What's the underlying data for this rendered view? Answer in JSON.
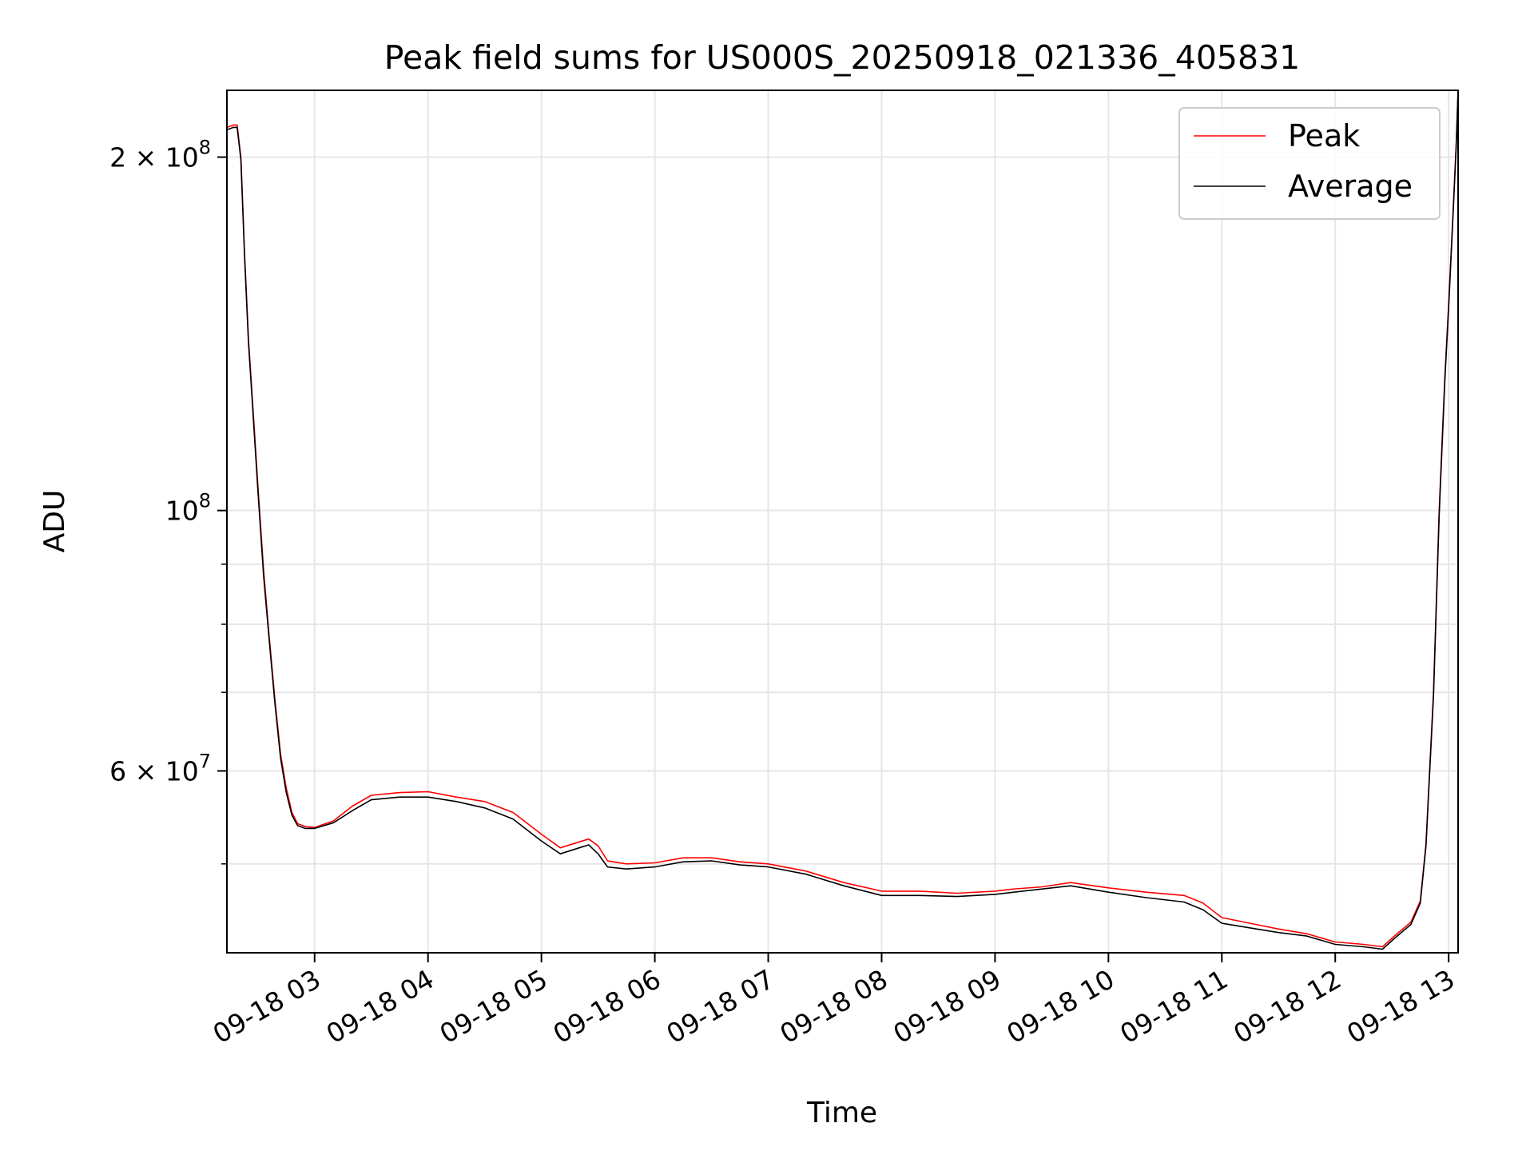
{
  "chart_data": {
    "type": "line",
    "title": "Peak field sums for US000S_20250918_021336_405831",
    "xlabel": "Time",
    "ylabel": "ADU",
    "y_scale": "log",
    "ylim": [
      42000000,
      228000000
    ],
    "xlim": [
      "2025-09-18T02:13:36",
      "2025-09-18T13:05:00"
    ],
    "grid": true,
    "legend_position": "top-right",
    "x_ticks": [
      {
        "x": "2025-09-18T03:00",
        "label": "09-18 03"
      },
      {
        "x": "2025-09-18T04:00",
        "label": "09-18 04"
      },
      {
        "x": "2025-09-18T05:00",
        "label": "09-18 05"
      },
      {
        "x": "2025-09-18T06:00",
        "label": "09-18 06"
      },
      {
        "x": "2025-09-18T07:00",
        "label": "09-18 07"
      },
      {
        "x": "2025-09-18T08:00",
        "label": "09-18 08"
      },
      {
        "x": "2025-09-18T09:00",
        "label": "09-18 09"
      },
      {
        "x": "2025-09-18T10:00",
        "label": "09-18 10"
      },
      {
        "x": "2025-09-18T11:00",
        "label": "09-18 11"
      },
      {
        "x": "2025-09-18T12:00",
        "label": "09-18 12"
      },
      {
        "x": "2025-09-18T13:00",
        "label": "09-18 13"
      }
    ],
    "y_major_ticks": [
      {
        "y": 200000000,
        "mant": "2",
        "exp": "8"
      },
      {
        "y": 100000000,
        "mant": "",
        "exp": "8"
      },
      {
        "y": 60000000,
        "mant": "6",
        "exp": "7"
      }
    ],
    "y_minor_ticks": [
      50000000,
      70000000,
      80000000,
      90000000
    ],
    "series": [
      {
        "name": "Peak",
        "color": "#ff0000",
        "x": [
          "2025-09-18T02:13:36",
          "2025-09-18T02:17",
          "2025-09-18T02:19",
          "2025-09-18T02:21",
          "2025-09-18T02:23",
          "2025-09-18T02:25",
          "2025-09-18T02:27",
          "2025-09-18T02:30",
          "2025-09-18T02:33",
          "2025-09-18T02:36",
          "2025-09-18T02:39",
          "2025-09-18T02:42",
          "2025-09-18T02:45",
          "2025-09-18T02:48",
          "2025-09-18T02:51",
          "2025-09-18T02:55",
          "2025-09-18T03:00",
          "2025-09-18T03:10",
          "2025-09-18T03:20",
          "2025-09-18T03:30",
          "2025-09-18T03:45",
          "2025-09-18T04:00",
          "2025-09-18T04:15",
          "2025-09-18T04:30",
          "2025-09-18T04:45",
          "2025-09-18T05:00",
          "2025-09-18T05:10",
          "2025-09-18T05:20",
          "2025-09-18T05:25",
          "2025-09-18T05:30",
          "2025-09-18T05:35",
          "2025-09-18T05:45",
          "2025-09-18T06:00",
          "2025-09-18T06:15",
          "2025-09-18T06:30",
          "2025-09-18T06:45",
          "2025-09-18T07:00",
          "2025-09-18T07:20",
          "2025-09-18T07:40",
          "2025-09-18T08:00",
          "2025-09-18T08:20",
          "2025-09-18T08:40",
          "2025-09-18T09:00",
          "2025-09-18T09:10",
          "2025-09-18T09:25",
          "2025-09-18T09:40",
          "2025-09-18T10:00",
          "2025-09-18T10:20",
          "2025-09-18T10:40",
          "2025-09-18T10:50",
          "2025-09-18T11:00",
          "2025-09-18T11:15",
          "2025-09-18T11:30",
          "2025-09-18T11:45",
          "2025-09-18T12:00",
          "2025-09-18T12:15",
          "2025-09-18T12:25",
          "2025-09-18T12:32",
          "2025-09-18T12:40",
          "2025-09-18T12:45",
          "2025-09-18T12:48",
          "2025-09-18T12:52",
          "2025-09-18T12:55",
          "2025-09-18T12:58",
          "2025-09-18T13:00",
          "2025-09-18T13:02",
          "2025-09-18T13:04",
          "2025-09-18T13:05"
        ],
        "y": [
          212000000,
          213000000,
          213000000,
          200000000,
          165000000,
          140000000,
          125000000,
          105000000,
          89000000,
          78000000,
          69000000,
          62000000,
          58000000,
          55300000,
          54100000,
          53800000,
          53700000,
          54400000,
          56000000,
          57200000,
          57500000,
          57600000,
          57000000,
          56500000,
          55300000,
          53000000,
          51600000,
          52200000,
          52500000,
          51800000,
          50300000,
          50000000,
          50100000,
          50600000,
          50600000,
          50200000,
          50000000,
          49300000,
          48200000,
          47400000,
          47400000,
          47200000,
          47400000,
          47600000,
          47800000,
          48200000,
          47700000,
          47300000,
          47000000,
          46300000,
          45000000,
          44500000,
          44000000,
          43600000,
          42900000,
          42700000,
          42500000,
          43500000,
          44600000,
          46500000,
          52000000,
          70000000,
          100000000,
          130000000,
          150000000,
          175000000,
          205000000,
          228000000
        ]
      },
      {
        "name": "Average",
        "color": "#000000",
        "x": [
          "2025-09-18T02:13:36",
          "2025-09-18T02:17",
          "2025-09-18T02:19",
          "2025-09-18T02:21",
          "2025-09-18T02:23",
          "2025-09-18T02:25",
          "2025-09-18T02:27",
          "2025-09-18T02:30",
          "2025-09-18T02:33",
          "2025-09-18T02:36",
          "2025-09-18T02:39",
          "2025-09-18T02:42",
          "2025-09-18T02:45",
          "2025-09-18T02:48",
          "2025-09-18T02:51",
          "2025-09-18T02:55",
          "2025-09-18T03:00",
          "2025-09-18T03:10",
          "2025-09-18T03:20",
          "2025-09-18T03:30",
          "2025-09-18T03:45",
          "2025-09-18T04:00",
          "2025-09-18T04:15",
          "2025-09-18T04:30",
          "2025-09-18T04:45",
          "2025-09-18T05:00",
          "2025-09-18T05:10",
          "2025-09-18T05:20",
          "2025-09-18T05:25",
          "2025-09-18T05:30",
          "2025-09-18T05:35",
          "2025-09-18T05:45",
          "2025-09-18T06:00",
          "2025-09-18T06:15",
          "2025-09-18T06:30",
          "2025-09-18T06:45",
          "2025-09-18T07:00",
          "2025-09-18T07:20",
          "2025-09-18T07:40",
          "2025-09-18T08:00",
          "2025-09-18T08:20",
          "2025-09-18T08:40",
          "2025-09-18T09:00",
          "2025-09-18T09:10",
          "2025-09-18T09:25",
          "2025-09-18T09:40",
          "2025-09-18T10:00",
          "2025-09-18T10:20",
          "2025-09-18T10:40",
          "2025-09-18T10:50",
          "2025-09-18T11:00",
          "2025-09-18T11:15",
          "2025-09-18T11:30",
          "2025-09-18T11:45",
          "2025-09-18T12:00",
          "2025-09-18T12:15",
          "2025-09-18T12:25",
          "2025-09-18T12:32",
          "2025-09-18T12:40",
          "2025-09-18T12:45",
          "2025-09-18T12:48",
          "2025-09-18T12:52",
          "2025-09-18T12:55",
          "2025-09-18T12:58",
          "2025-09-18T13:00",
          "2025-09-18T13:02",
          "2025-09-18T13:04",
          "2025-09-18T13:05"
        ],
        "y": [
          211000000,
          212000000,
          212000000,
          199000000,
          164000000,
          139000000,
          124000000,
          104000000,
          88000000,
          77500000,
          68500000,
          61500000,
          57500000,
          55000000,
          53900000,
          53600000,
          53600000,
          54200000,
          55500000,
          56700000,
          57000000,
          57000000,
          56500000,
          55800000,
          54600000,
          52300000,
          51000000,
          51600000,
          51900000,
          51000000,
          49700000,
          49500000,
          49700000,
          50200000,
          50300000,
          49900000,
          49700000,
          49000000,
          47900000,
          47000000,
          47000000,
          46900000,
          47100000,
          47300000,
          47600000,
          47900000,
          47300000,
          46800000,
          46400000,
          45700000,
          44500000,
          44100000,
          43700000,
          43400000,
          42700000,
          42500000,
          42300000,
          43300000,
          44400000,
          46300000,
          51800000,
          69500000,
          99000000,
          129000000,
          149000000,
          174000000,
          204000000,
          228000000
        ]
      }
    ]
  }
}
